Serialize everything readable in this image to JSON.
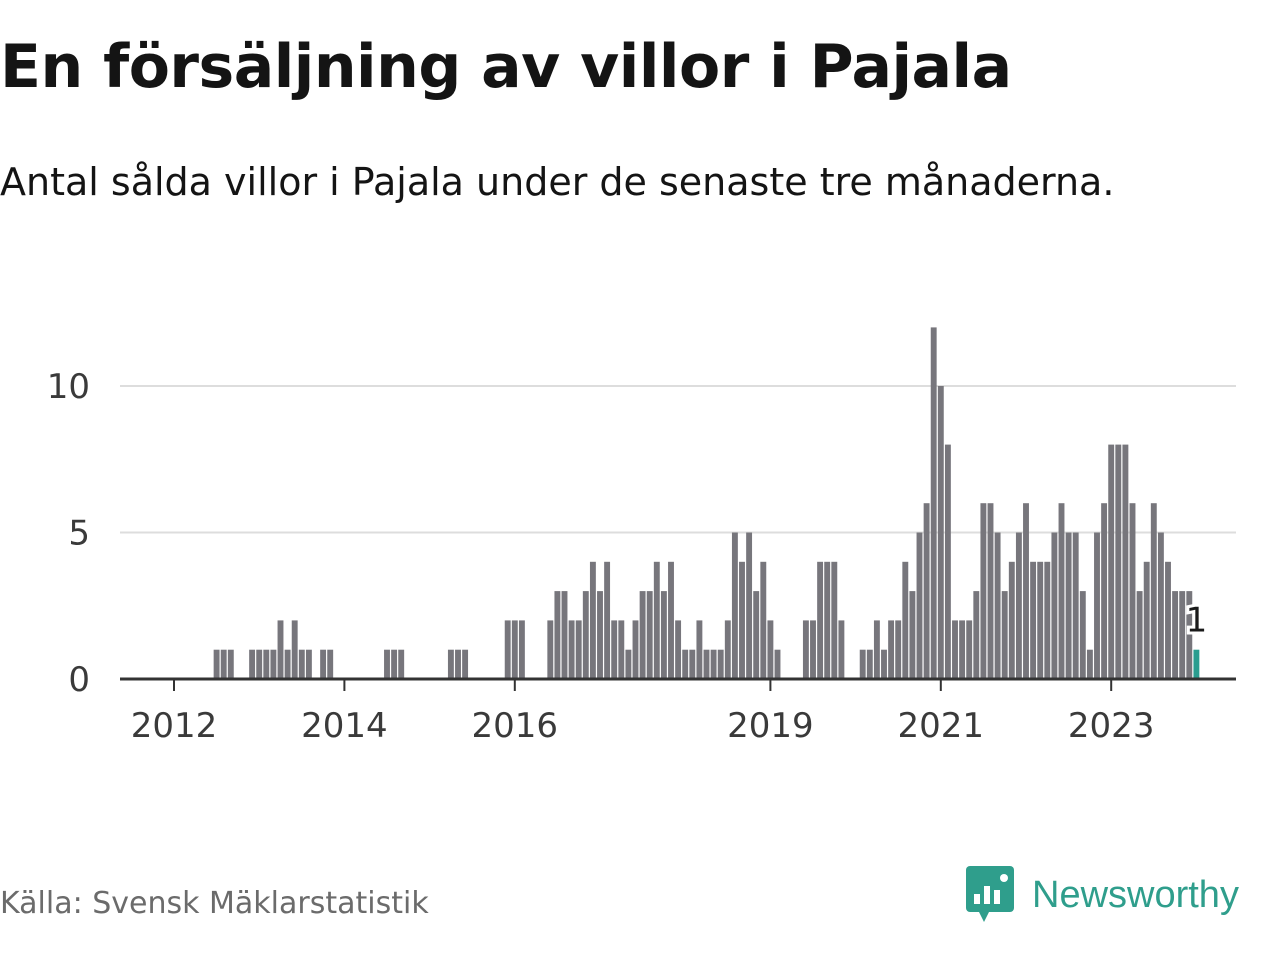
{
  "title": "En försäljning av villor i Pajala",
  "subtitle": "Antal sålda villor i Pajala under de senaste tre månaderna.",
  "source": "Källa: Svensk Mäklarstatistik",
  "brand": "Newsworthy",
  "colors": {
    "bar": "#77767c",
    "highlight": "#2a9d8f",
    "grid": "#dddddd",
    "axis": "#333333",
    "brand": "#2f9e8c"
  },
  "chart_data": {
    "type": "bar",
    "title": "En försäljning av villor i Pajala",
    "subtitle": "Antal sålda villor i Pajala under de senaste tre månaderna.",
    "xlabel": "",
    "ylabel": "",
    "ylim": [
      0,
      12
    ],
    "yticks": [
      0,
      5,
      10
    ],
    "xticks": [
      {
        "label": "2012",
        "index": 0
      },
      {
        "label": "2014",
        "index": 24
      },
      {
        "label": "2016",
        "index": 48
      },
      {
        "label": "2019",
        "index": 84
      },
      {
        "label": "2021",
        "index": 108
      },
      {
        "label": "2023",
        "index": 132
      }
    ],
    "x_start": "2012-01",
    "frequency": "monthly",
    "values": [
      0,
      0,
      0,
      0,
      0,
      0,
      1,
      1,
      1,
      0,
      0,
      1,
      1,
      1,
      1,
      2,
      1,
      2,
      1,
      1,
      0,
      1,
      1,
      0,
      0,
      0,
      0,
      0,
      0,
      0,
      1,
      1,
      1,
      0,
      0,
      0,
      0,
      0,
      0,
      1,
      1,
      1,
      0,
      0,
      0,
      0,
      0,
      2,
      2,
      2,
      0,
      0,
      0,
      2,
      3,
      3,
      2,
      2,
      3,
      4,
      3,
      4,
      2,
      2,
      1,
      2,
      3,
      3,
      4,
      3,
      4,
      2,
      1,
      1,
      2,
      1,
      1,
      1,
      2,
      5,
      4,
      5,
      3,
      4,
      2,
      1,
      0,
      0,
      0,
      2,
      2,
      4,
      4,
      4,
      2,
      0,
      0,
      1,
      1,
      2,
      1,
      2,
      2,
      4,
      3,
      5,
      6,
      12,
      10,
      8,
      2,
      2,
      2,
      3,
      6,
      6,
      5,
      3,
      4,
      5,
      6,
      4,
      4,
      4,
      5,
      6,
      5,
      5,
      3,
      1,
      5,
      6,
      8,
      8,
      8,
      6,
      3,
      4,
      6,
      5,
      4,
      3,
      3,
      3,
      1
    ],
    "highlight_index": 144,
    "highlight_label": "1"
  }
}
